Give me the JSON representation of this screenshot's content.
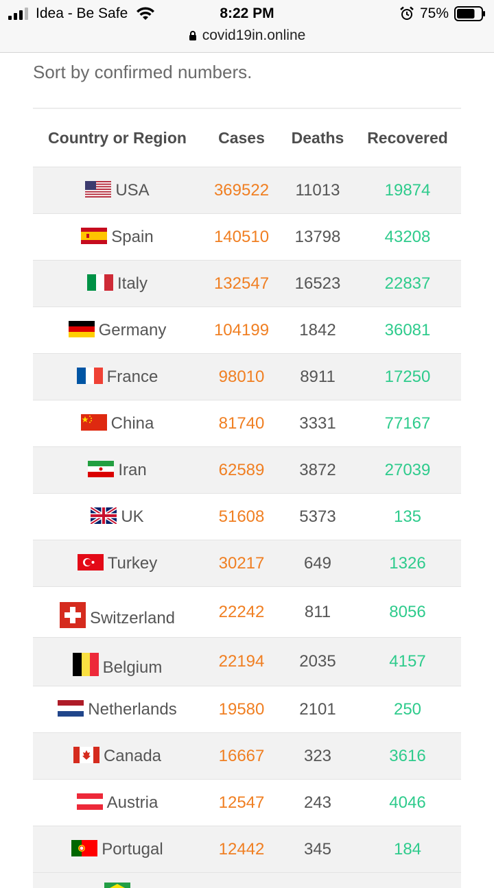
{
  "status_bar": {
    "carrier": "Idea - Be Safe",
    "time": "8:22 PM",
    "battery_percent": "75%",
    "battery_level": 0.75,
    "signal_bars": 3
  },
  "url_bar": {
    "domain": "covid19in.online"
  },
  "page": {
    "sort_label": "Sort by confirmed numbers."
  },
  "table": {
    "headers": {
      "country": "Country or Region",
      "cases": "Cases",
      "deaths": "Deaths",
      "recovered": "Recovered"
    },
    "rows": [
      {
        "country": "USA",
        "flag": "usa-flag-icon",
        "cases": "369522",
        "deaths": "11013",
        "recovered": "19874"
      },
      {
        "country": "Spain",
        "flag": "spain-flag-icon",
        "cases": "140510",
        "deaths": "13798",
        "recovered": "43208"
      },
      {
        "country": "Italy",
        "flag": "italy-flag-icon",
        "cases": "132547",
        "deaths": "16523",
        "recovered": "22837"
      },
      {
        "country": "Germany",
        "flag": "germany-flag-icon",
        "cases": "104199",
        "deaths": "1842",
        "recovered": "36081"
      },
      {
        "country": "France",
        "flag": "france-flag-icon",
        "cases": "98010",
        "deaths": "8911",
        "recovered": "17250"
      },
      {
        "country": "China",
        "flag": "china-flag-icon",
        "cases": "81740",
        "deaths": "3331",
        "recovered": "77167"
      },
      {
        "country": "Iran",
        "flag": "iran-flag-icon",
        "cases": "62589",
        "deaths": "3872",
        "recovered": "27039"
      },
      {
        "country": "UK",
        "flag": "uk-flag-icon",
        "cases": "51608",
        "deaths": "5373",
        "recovered": "135"
      },
      {
        "country": "Turkey",
        "flag": "turkey-flag-icon",
        "cases": "30217",
        "deaths": "649",
        "recovered": "1326"
      },
      {
        "country": "Switzerland",
        "flag": "switzerland-flag-icon",
        "cases": "22242",
        "deaths": "811",
        "recovered": "8056"
      },
      {
        "country": "Belgium",
        "flag": "belgium-flag-icon",
        "cases": "22194",
        "deaths": "2035",
        "recovered": "4157"
      },
      {
        "country": "Netherlands",
        "flag": "netherlands-flag-icon",
        "cases": "19580",
        "deaths": "2101",
        "recovered": "250"
      },
      {
        "country": "Canada",
        "flag": "canada-flag-icon",
        "cases": "16667",
        "deaths": "323",
        "recovered": "3616"
      },
      {
        "country": "Austria",
        "flag": "austria-flag-icon",
        "cases": "12547",
        "deaths": "243",
        "recovered": "4046"
      },
      {
        "country": "Portugal",
        "flag": "portugal-flag-icon",
        "cases": "12442",
        "deaths": "345",
        "recovered": "184"
      }
    ]
  },
  "colors": {
    "cases": "#f07f22",
    "deaths": "#555555",
    "recovered": "#2ecb8c",
    "row_alt_bg": "#f2f2f2"
  }
}
